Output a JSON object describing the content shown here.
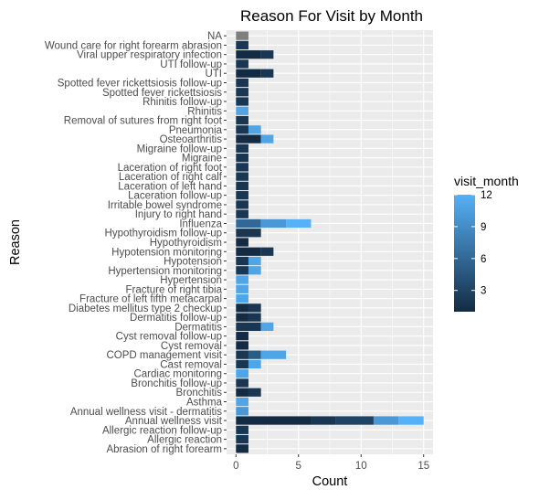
{
  "chart_data": {
    "type": "bar",
    "orientation": "horizontal",
    "stacked": true,
    "title": "Reason For Visit by Month",
    "xlabel": "Count",
    "ylabel": "Reason",
    "xlim": [
      -0.75,
      15.75
    ],
    "x_ticks": [
      0,
      5,
      10,
      15
    ],
    "x_tick_labels": [
      "0",
      "5",
      "10",
      "15"
    ],
    "grid": true,
    "legend": {
      "title": "visit_month",
      "placement": "right",
      "ticks": [
        3,
        6,
        9,
        12
      ],
      "tick_labels": [
        "3",
        "6",
        "9",
        "12"
      ],
      "range": [
        1,
        12
      ],
      "low_color": "#132B43",
      "high_color": "#56B1F7"
    },
    "na_color": "#7f7f7f",
    "categories": [
      "Abrasion of right forearm",
      "Allergic reaction",
      "Allergic reaction follow-up",
      "Annual wellness visit",
      "Annual wellness visit - dermatitis",
      "Asthma",
      "Bronchitis",
      "Bronchitis follow-up",
      "Cardiac monitoring",
      "Cast removal",
      "COPD management visit",
      "Cyst removal",
      "Cyst removal follow-up",
      "Dermatitis",
      "Dermatitis follow-up",
      "Diabetes mellitus type 2 checkup",
      "Fracture of left fifth metacarpal",
      "Fracture of right tibia",
      "Hypertension",
      "Hypertension monitoring",
      "Hypotension",
      "Hypotension monitoring",
      "Hypothyroidism",
      "Hypothyroidism follow-up",
      "Influenza",
      "Injury to right hand",
      "Irritable bowel syndrome",
      "Laceration follow-up",
      "Laceration of left hand",
      "Laceration of right calf",
      "Laceration of right foot",
      "Migraine",
      "Migraine follow-up",
      "Osteoarthritis",
      "Pneumonia",
      "Removal of sutures from right foot",
      "Rhinitis",
      "Rhinitis follow-up",
      "Spotted fever rickettsiosis",
      "Spotted fever rickettsiosis follow-up",
      "UTI",
      "UTI follow-up",
      "Viral upper respiratory infection",
      "Wound care for right forearm abrasion",
      "NA"
    ],
    "values": [
      1,
      1,
      1,
      15,
      1,
      1,
      2,
      1,
      1,
      2,
      4,
      1,
      1,
      3,
      2,
      2,
      1,
      1,
      1,
      2,
      2,
      3,
      1,
      2,
      6,
      1,
      1,
      1,
      1,
      1,
      1,
      1,
      1,
      3,
      2,
      1,
      1,
      1,
      1,
      1,
      3,
      1,
      3,
      1,
      1
    ],
    "segments": [
      [
        {
          "count": 1,
          "month": 1
        }
      ],
      [
        {
          "count": 1,
          "month": 2
        }
      ],
      [
        {
          "count": 1,
          "month": 2
        }
      ],
      [
        {
          "count": 6,
          "month": 1
        },
        {
          "count": 2,
          "month": 2
        },
        {
          "count": 3,
          "month": 3
        },
        {
          "count": 2,
          "month": 10
        },
        {
          "count": 2,
          "month": 12
        }
      ],
      [
        {
          "count": 1,
          "month": 10
        }
      ],
      [
        {
          "count": 1,
          "month": 11
        }
      ],
      [
        {
          "count": 1,
          "month": 1
        },
        {
          "count": 1,
          "month": 2
        }
      ],
      [
        {
          "count": 1,
          "month": 2
        }
      ],
      [
        {
          "count": 1,
          "month": 11
        }
      ],
      [
        {
          "count": 1,
          "month": 2
        },
        {
          "count": 1,
          "month": 11
        }
      ],
      [
        {
          "count": 1,
          "month": 2
        },
        {
          "count": 1,
          "month": 5
        },
        {
          "count": 2,
          "month": 11
        }
      ],
      [
        {
          "count": 1,
          "month": 1
        }
      ],
      [
        {
          "count": 1,
          "month": 1
        }
      ],
      [
        {
          "count": 2,
          "month": 2
        },
        {
          "count": 1,
          "month": 11
        }
      ],
      [
        {
          "count": 1,
          "month": 1
        },
        {
          "count": 1,
          "month": 2
        }
      ],
      [
        {
          "count": 1,
          "month": 1
        },
        {
          "count": 1,
          "month": 2
        }
      ],
      [
        {
          "count": 1,
          "month": 11
        }
      ],
      [
        {
          "count": 1,
          "month": 11
        }
      ],
      [
        {
          "count": 1,
          "month": 11
        }
      ],
      [
        {
          "count": 1,
          "month": 2
        },
        {
          "count": 1,
          "month": 11
        }
      ],
      [
        {
          "count": 1,
          "month": 2
        },
        {
          "count": 1,
          "month": 11
        }
      ],
      [
        {
          "count": 2,
          "month": 1
        },
        {
          "count": 1,
          "month": 2
        }
      ],
      [
        {
          "count": 1,
          "month": 1
        }
      ],
      [
        {
          "count": 2,
          "month": 2
        }
      ],
      [
        {
          "count": 2,
          "month": 6
        },
        {
          "count": 2,
          "month": 10
        },
        {
          "count": 2,
          "month": 12
        }
      ],
      [
        {
          "count": 1,
          "month": 2
        }
      ],
      [
        {
          "count": 1,
          "month": 2
        }
      ],
      [
        {
          "count": 1,
          "month": 2
        }
      ],
      [
        {
          "count": 1,
          "month": 2
        }
      ],
      [
        {
          "count": 1,
          "month": 2
        }
      ],
      [
        {
          "count": 1,
          "month": 2
        }
      ],
      [
        {
          "count": 1,
          "month": 2
        }
      ],
      [
        {
          "count": 1,
          "month": 2
        }
      ],
      [
        {
          "count": 2,
          "month": 1
        },
        {
          "count": 1,
          "month": 11
        }
      ],
      [
        {
          "count": 1,
          "month": 2
        },
        {
          "count": 1,
          "month": 11
        }
      ],
      [
        {
          "count": 1,
          "month": 2
        }
      ],
      [
        {
          "count": 1,
          "month": 11
        }
      ],
      [
        {
          "count": 1,
          "month": 2
        }
      ],
      [
        {
          "count": 1,
          "month": 2
        }
      ],
      [
        {
          "count": 1,
          "month": 2
        }
      ],
      [
        {
          "count": 2,
          "month": 1
        },
        {
          "count": 1,
          "month": 2
        }
      ],
      [
        {
          "count": 1,
          "month": 2
        }
      ],
      [
        {
          "count": 2,
          "month": 1
        },
        {
          "count": 1,
          "month": 2
        }
      ],
      [
        {
          "count": 1,
          "month": 2
        }
      ],
      [
        {
          "count": 1,
          "month": null
        }
      ]
    ]
  }
}
